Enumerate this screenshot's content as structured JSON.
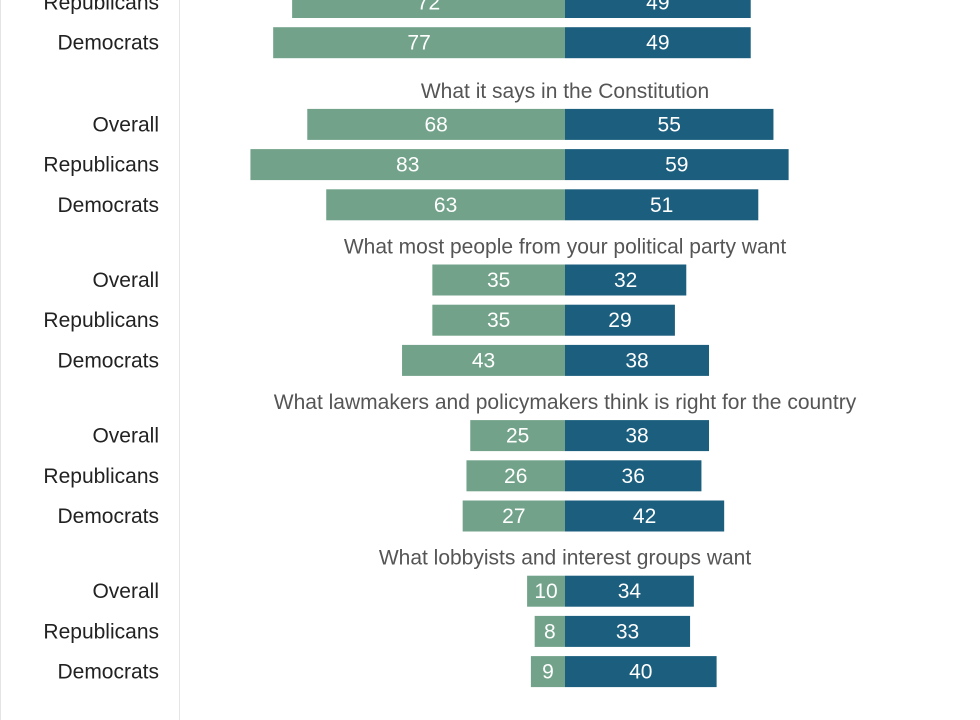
{
  "chart_data": {
    "type": "bar",
    "subtype": "diverging",
    "colors": {
      "left_series": "#72a38a",
      "right_series": "#1b5e7e",
      "label_text": "#ffffff",
      "group_title": "#555555",
      "category_text": "#222222"
    },
    "series": [
      {
        "name": "",
        "side": "left"
      },
      {
        "name": "",
        "side": "right"
      }
    ],
    "groups": [
      {
        "title": "",
        "rows": [
          {
            "category": "Republicans",
            "left": 72,
            "right": 49
          },
          {
            "category": "Democrats",
            "left": 77,
            "right": 49
          }
        ]
      },
      {
        "title": "What it says in the Constitution",
        "rows": [
          {
            "category": "Overall",
            "left": 68,
            "right": 55
          },
          {
            "category": "Republicans",
            "left": 83,
            "right": 59
          },
          {
            "category": "Democrats",
            "left": 63,
            "right": 51
          }
        ]
      },
      {
        "title": "What most people from your political party want",
        "rows": [
          {
            "category": "Overall",
            "left": 35,
            "right": 32
          },
          {
            "category": "Republicans",
            "left": 35,
            "right": 29
          },
          {
            "category": "Democrats",
            "left": 43,
            "right": 38
          }
        ]
      },
      {
        "title": "What lawmakers and policymakers think is right for the country",
        "rows": [
          {
            "category": "Overall",
            "left": 25,
            "right": 38
          },
          {
            "category": "Republicans",
            "left": 26,
            "right": 36
          },
          {
            "category": "Democrats",
            "left": 27,
            "right": 42
          }
        ]
      },
      {
        "title": "What lobbyists and interest groups want",
        "rows": [
          {
            "category": "Overall",
            "left": 10,
            "right": 34
          },
          {
            "category": "Republicans",
            "left": 8,
            "right": 33
          },
          {
            "category": "Democrats",
            "left": 9,
            "right": 40
          }
        ]
      }
    ]
  }
}
